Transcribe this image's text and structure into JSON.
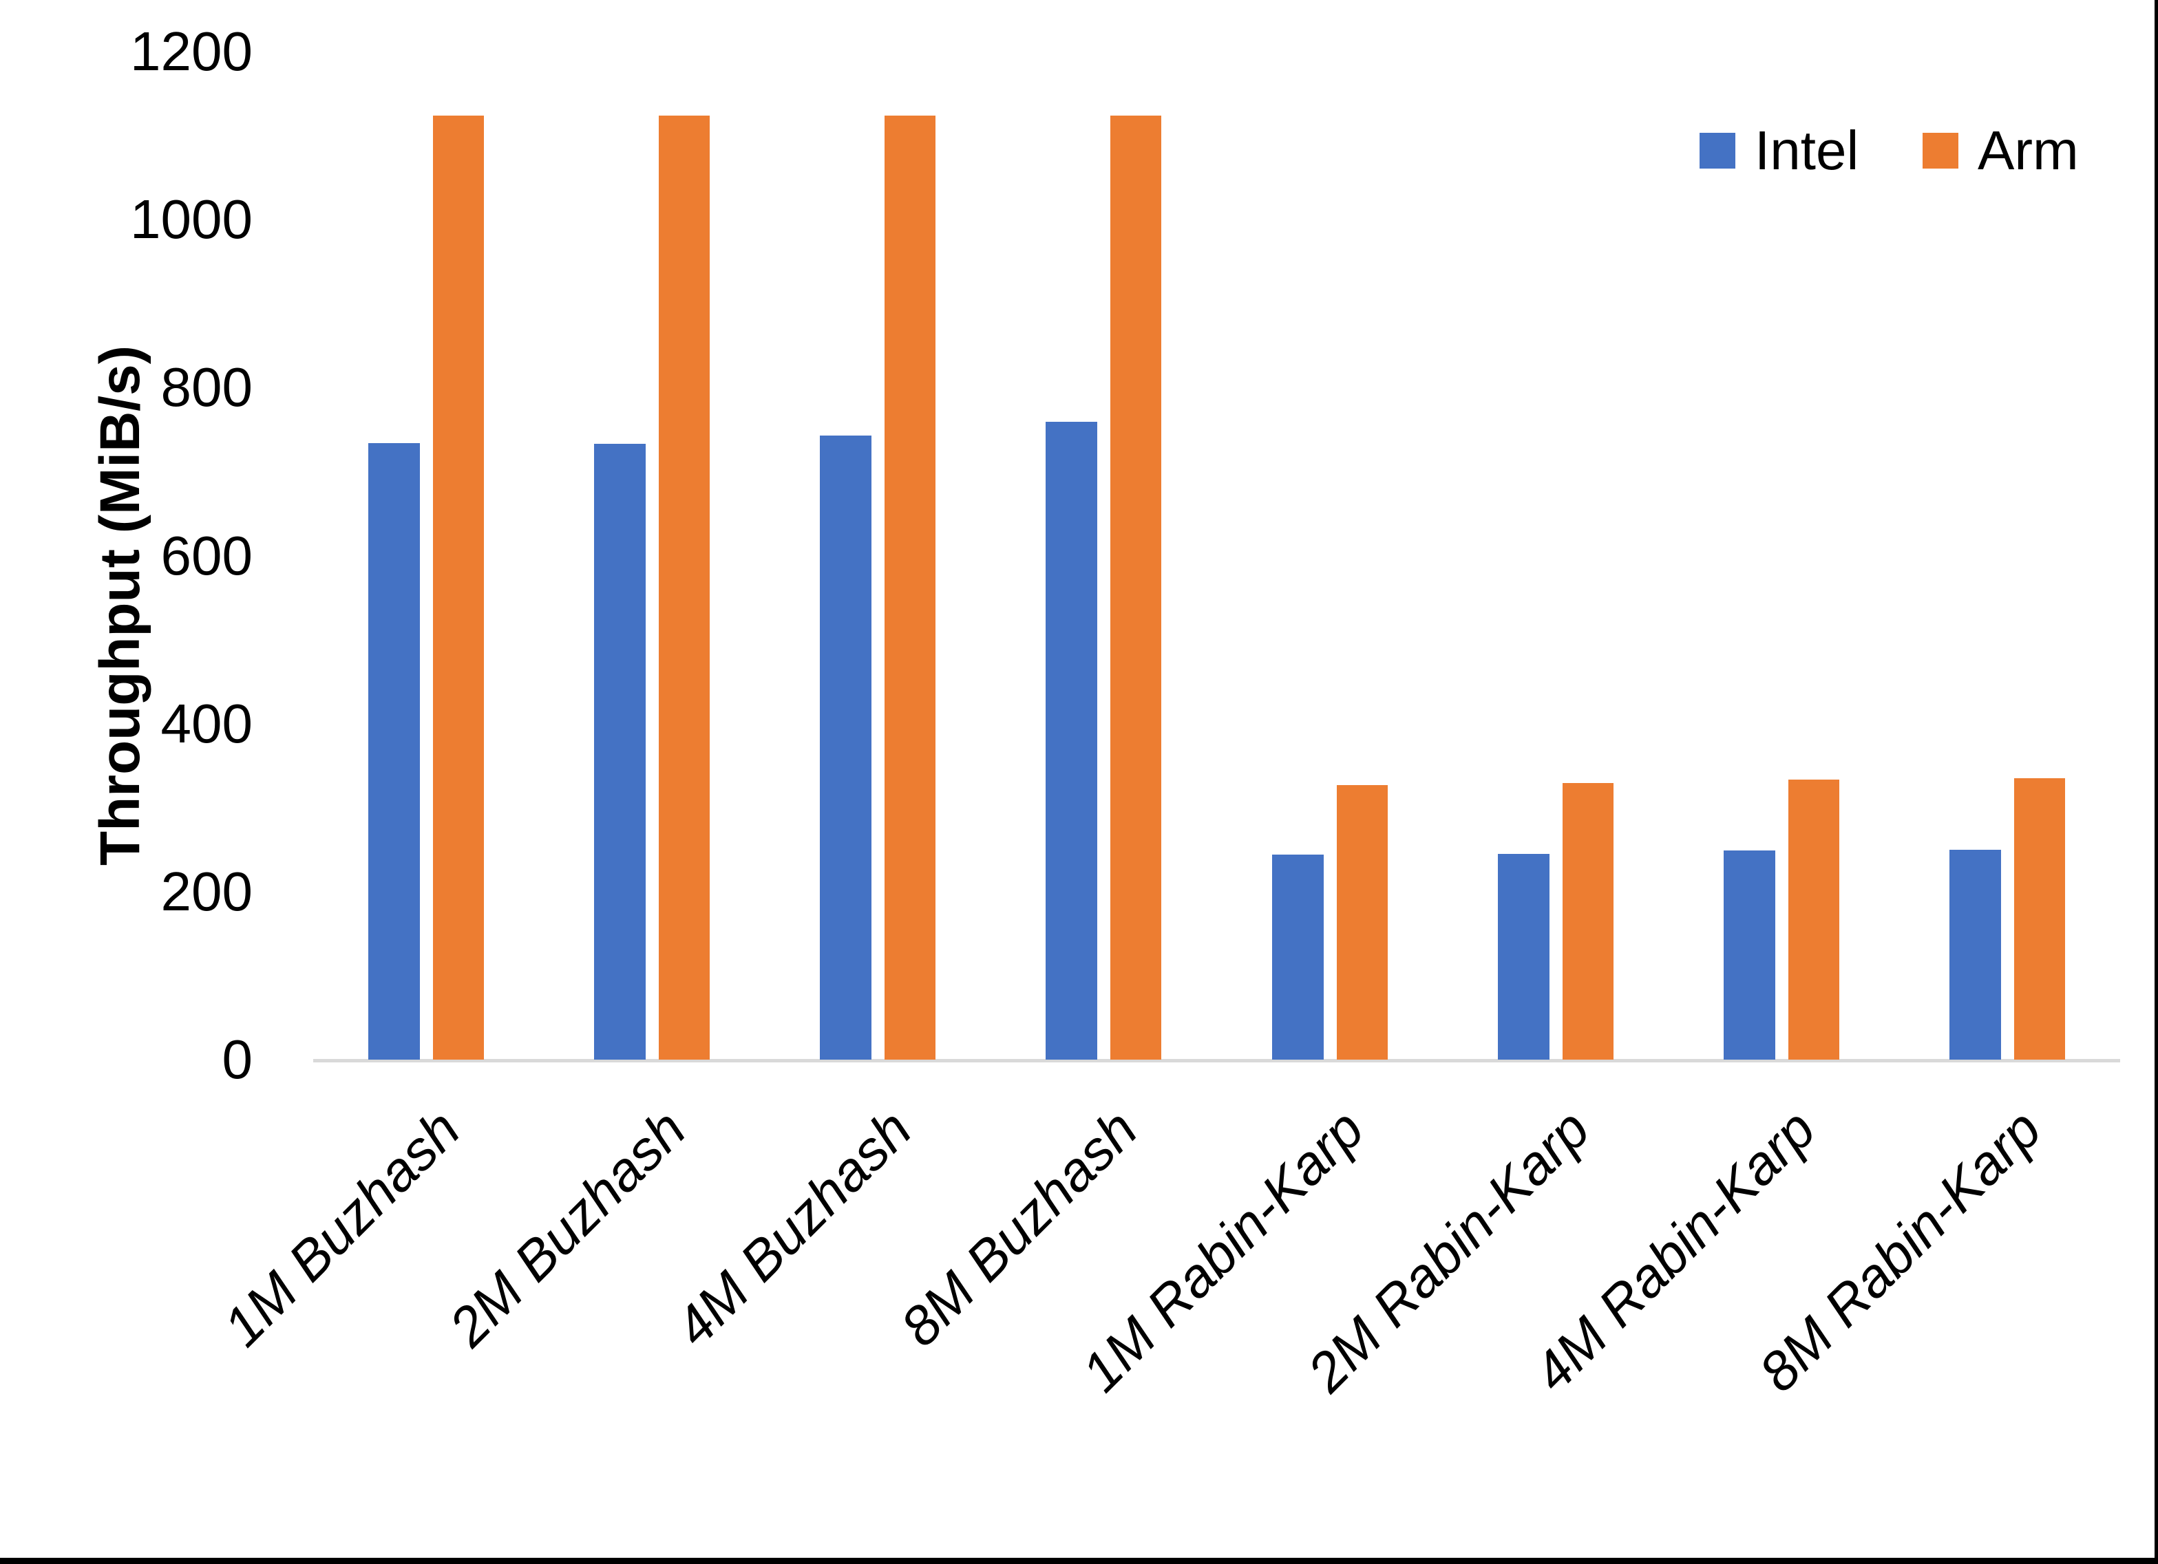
{
  "chart_data": {
    "type": "bar",
    "title": "",
    "xlabel": "",
    "ylabel": "Throughput (MiB/s)",
    "ylim": [
      0,
      1200
    ],
    "ytick_step": 200,
    "yticks": [
      0,
      200,
      400,
      600,
      800,
      1000,
      1200
    ],
    "grid": false,
    "legend_position": "top-right",
    "categories": [
      "1M Buzhash",
      "2M Buzhash",
      "4M Buzhash",
      "8M Buzhash",
      "1M Rabin-Karp",
      "2M Rabin-Karp",
      "4M Rabin-Karp",
      "8M Rabin-Karp"
    ],
    "series": [
      {
        "name": "Intel",
        "color": "#4472C4",
        "values": [
          734,
          733,
          743,
          759,
          244,
          245,
          249,
          250
        ]
      },
      {
        "name": "Arm",
        "color": "#ED7D31",
        "values": [
          1124,
          1124,
          1124,
          1124,
          327,
          329,
          333,
          335
        ]
      }
    ],
    "axis_line_color": "#D9D9D9",
    "text_color": "#000000"
  },
  "figure": {
    "border_color": "#000000",
    "background_color": "#FFFFFF"
  }
}
